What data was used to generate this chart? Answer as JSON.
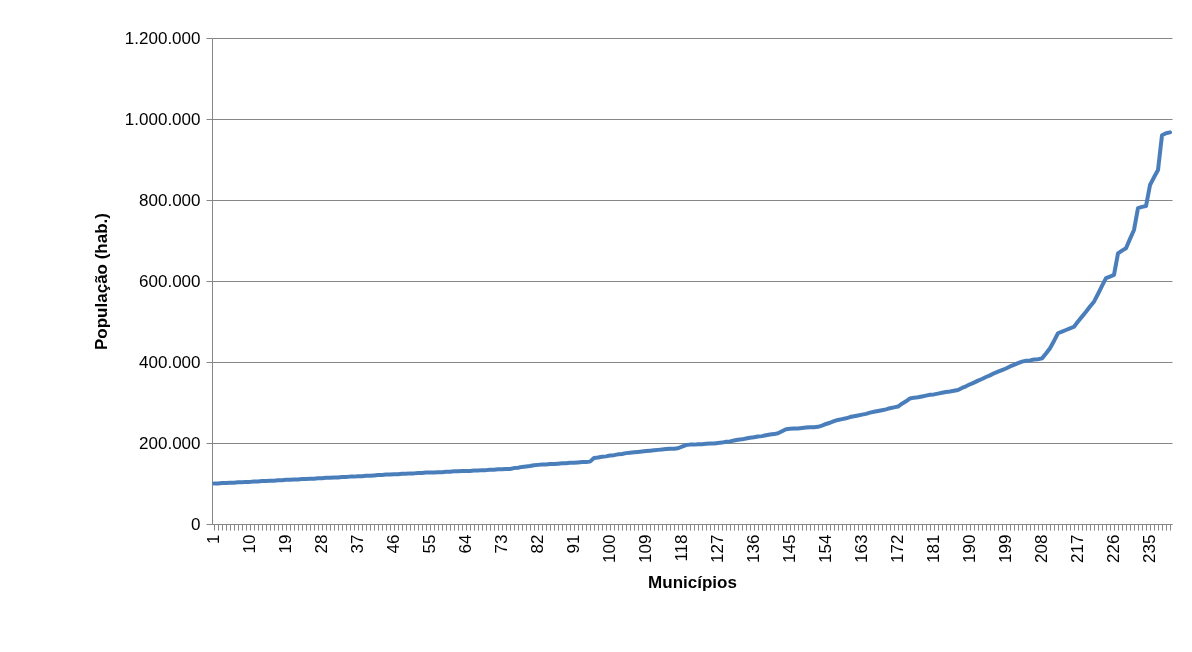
{
  "chart_data": {
    "type": "line",
    "xlabel": "Municípios",
    "ylabel": "População (hab.)",
    "categories": [
      "1",
      null,
      null,
      null,
      null,
      null,
      null,
      null,
      null,
      "10",
      null,
      null,
      null,
      null,
      null,
      null,
      null,
      null,
      "19",
      null,
      null,
      null,
      null,
      null,
      null,
      null,
      null,
      "28",
      null,
      null,
      null,
      null,
      null,
      null,
      null,
      null,
      "37",
      null,
      null,
      null,
      null,
      null,
      null,
      null,
      null,
      "46",
      null,
      null,
      null,
      null,
      null,
      null,
      null,
      null,
      "55",
      null,
      null,
      null,
      null,
      null,
      null,
      null,
      null,
      "64",
      null,
      null,
      null,
      null,
      null,
      null,
      null,
      null,
      "73",
      null,
      null,
      null,
      null,
      null,
      null,
      null,
      null,
      "82",
      null,
      null,
      null,
      null,
      null,
      null,
      null,
      null,
      "91",
      null,
      null,
      null,
      null,
      null,
      null,
      null,
      null,
      "100",
      null,
      null,
      null,
      null,
      null,
      null,
      null,
      null,
      "109",
      null,
      null,
      null,
      null,
      null,
      null,
      null,
      null,
      "118",
      null,
      null,
      null,
      null,
      null,
      null,
      null,
      null,
      "127",
      null,
      null,
      null,
      null,
      null,
      null,
      null,
      null,
      "136",
      null,
      null,
      null,
      null,
      null,
      null,
      null,
      null,
      "145",
      null,
      null,
      null,
      null,
      null,
      null,
      null,
      null,
      "154",
      null,
      null,
      null,
      null,
      null,
      null,
      null,
      null,
      "163",
      null,
      null,
      null,
      null,
      null,
      null,
      null,
      null,
      "172",
      null,
      null,
      null,
      null,
      null,
      null,
      null,
      null,
      "181",
      null,
      null,
      null,
      null,
      null,
      null,
      null,
      null,
      "190",
      null,
      null,
      null,
      null,
      null,
      null,
      null,
      null,
      "199",
      null,
      null,
      null,
      null,
      null,
      null,
      null,
      null,
      "208",
      null,
      null,
      null,
      null,
      null,
      null,
      null,
      null,
      "217",
      null,
      null,
      null,
      null,
      null,
      null,
      null,
      null,
      "226",
      null,
      null,
      null,
      null,
      null,
      null,
      null,
      null,
      "235",
      null,
      null,
      null,
      null,
      null
    ],
    "series": [
      {
        "color": "#4a7ebb",
        "values": [
          100000,
          100000,
          101000,
          101000,
          102000,
          102000,
          103000,
          103000,
          104000,
          104000,
          105000,
          105000,
          106000,
          106000,
          107000,
          107000,
          108000,
          108000,
          109000,
          109000,
          110000,
          110000,
          111000,
          111000,
          112000,
          112000,
          113000,
          113000,
          114000,
          114000,
          115000,
          115000,
          116000,
          116000,
          117000,
          117000,
          118000,
          118000,
          119000,
          119000,
          120000,
          121000,
          121000,
          122000,
          122000,
          123000,
          123000,
          124000,
          124000,
          125000,
          125000,
          126000,
          126000,
          127000,
          127000,
          127000,
          128000,
          128000,
          129000,
          129000,
          130000,
          130000,
          131000,
          131000,
          131000,
          132000,
          132000,
          133000,
          133000,
          134000,
          134000,
          135000,
          135000,
          136000,
          136000,
          138000,
          139000,
          141000,
          142000,
          143000,
          145000,
          146000,
          147000,
          147000,
          148000,
          148000,
          149000,
          150000,
          150000,
          151000,
          151000,
          152000,
          153000,
          153000,
          154000,
          163000,
          164000,
          166000,
          167000,
          169000,
          170000,
          172000,
          173000,
          175000,
          176000,
          177000,
          178000,
          179000,
          180000,
          181000,
          182000,
          183000,
          184000,
          185000,
          186000,
          186000,
          187000,
          191000,
          195000,
          196000,
          196000,
          197000,
          197000,
          198000,
          199000,
          199000,
          200000,
          201000,
          203000,
          204000,
          206000,
          208000,
          209000,
          211000,
          213000,
          214000,
          216000,
          217000,
          219000,
          221000,
          222000,
          224000,
          229000,
          234000,
          235000,
          236000,
          236000,
          237000,
          238000,
          239000,
          239000,
          240000,
          243000,
          247000,
          250000,
          254000,
          257000,
          259000,
          261000,
          264000,
          266000,
          268000,
          270000,
          272000,
          275000,
          277000,
          279000,
          281000,
          283000,
          286000,
          288000,
          290000,
          297000,
          303000,
          310000,
          312000,
          313000,
          315000,
          317000,
          319000,
          320000,
          322000,
          324000,
          326000,
          327000,
          329000,
          331000,
          336000,
          340000,
          345000,
          349000,
          354000,
          358000,
          363000,
          367000,
          372000,
          376000,
          380000,
          384000,
          389000,
          393000,
          397000,
          401000,
          403000,
          404000,
          406000,
          407000,
          409000,
          421000,
          434000,
          452000,
          471000,
          475000,
          479000,
          483000,
          487000,
          500000,
          512000,
          524000,
          537000,
          549000,
          568000,
          588000,
          607000,
          611000,
          615000,
          668000,
          675000,
          681000,
          704000,
          726000,
          780000,
          783000,
          785000,
          837000,
          856000,
          874000,
          960000,
          965000,
          967000
        ]
      }
    ],
    "ylim": [
      0,
      1200000
    ],
    "yticks": [
      0,
      {
        "value": 200000,
        "label": "200.000"
      },
      {
        "value": 400000,
        "label": "400.000"
      },
      {
        "value": 600000,
        "label": "600.000"
      },
      {
        "value": 800000,
        "label": "800.000"
      },
      {
        "value": 1000000,
        "label": "1.000.000"
      },
      {
        "value": 1200000,
        "label": "1.200.000"
      }
    ],
    "grid": "y",
    "line_style": "solid"
  }
}
